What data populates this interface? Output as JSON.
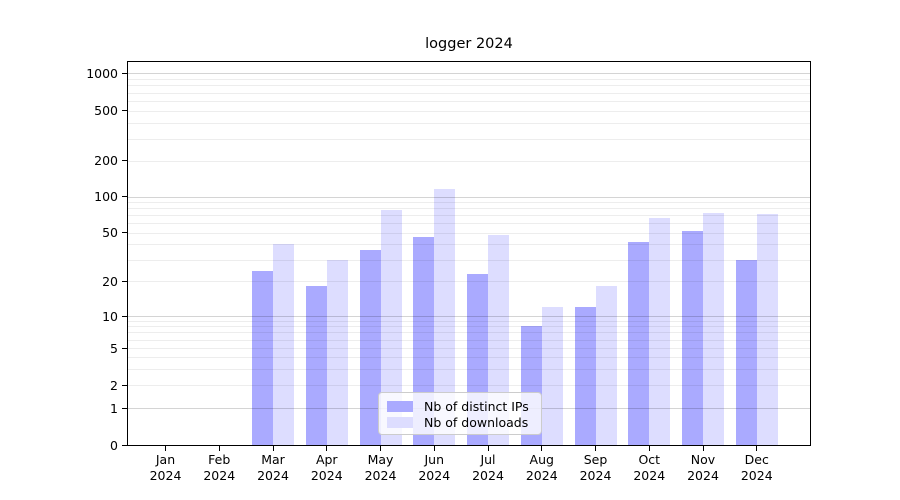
{
  "title": "logger 2024",
  "chart_data": {
    "type": "bar",
    "title": "logger 2024",
    "categories": [
      "Jan",
      "Feb",
      "Mar",
      "Apr",
      "May",
      "Jun",
      "Jul",
      "Aug",
      "Sep",
      "Oct",
      "Nov",
      "Dec"
    ],
    "x_tick_second_line": "2024",
    "series": [
      {
        "name": "Nb of distinct IPs",
        "color": "#aaaaff",
        "values": [
          0,
          0,
          24,
          18,
          36,
          46,
          23,
          8,
          12,
          42,
          52,
          30
        ]
      },
      {
        "name": "Nb of downloads",
        "color": "#ddddff",
        "values": [
          0,
          0,
          40,
          30,
          78,
          115,
          48,
          12,
          18,
          66,
          73,
          71
        ]
      }
    ],
    "yscale": "symlog",
    "ylabel": "",
    "xlabel": "",
    "y_ticks": [
      0,
      1,
      2,
      5,
      10,
      20,
      50,
      100,
      200,
      500,
      1000
    ],
    "y_minor_gridlines": [
      3,
      4,
      6,
      7,
      8,
      9,
      30,
      40,
      60,
      70,
      80,
      90,
      300,
      400,
      600,
      700,
      800,
      900
    ],
    "ylim": [
      0,
      1250
    ],
    "grid": "horizontal major+minor, drawn above bars",
    "legend_position": "lower center"
  },
  "colors": {
    "major_grid": "rgba(0,0,0,0.17)",
    "minor_grid": "rgba(0,0,0,0.07)",
    "axis": "#000000",
    "legend_border": "#cccccc"
  }
}
